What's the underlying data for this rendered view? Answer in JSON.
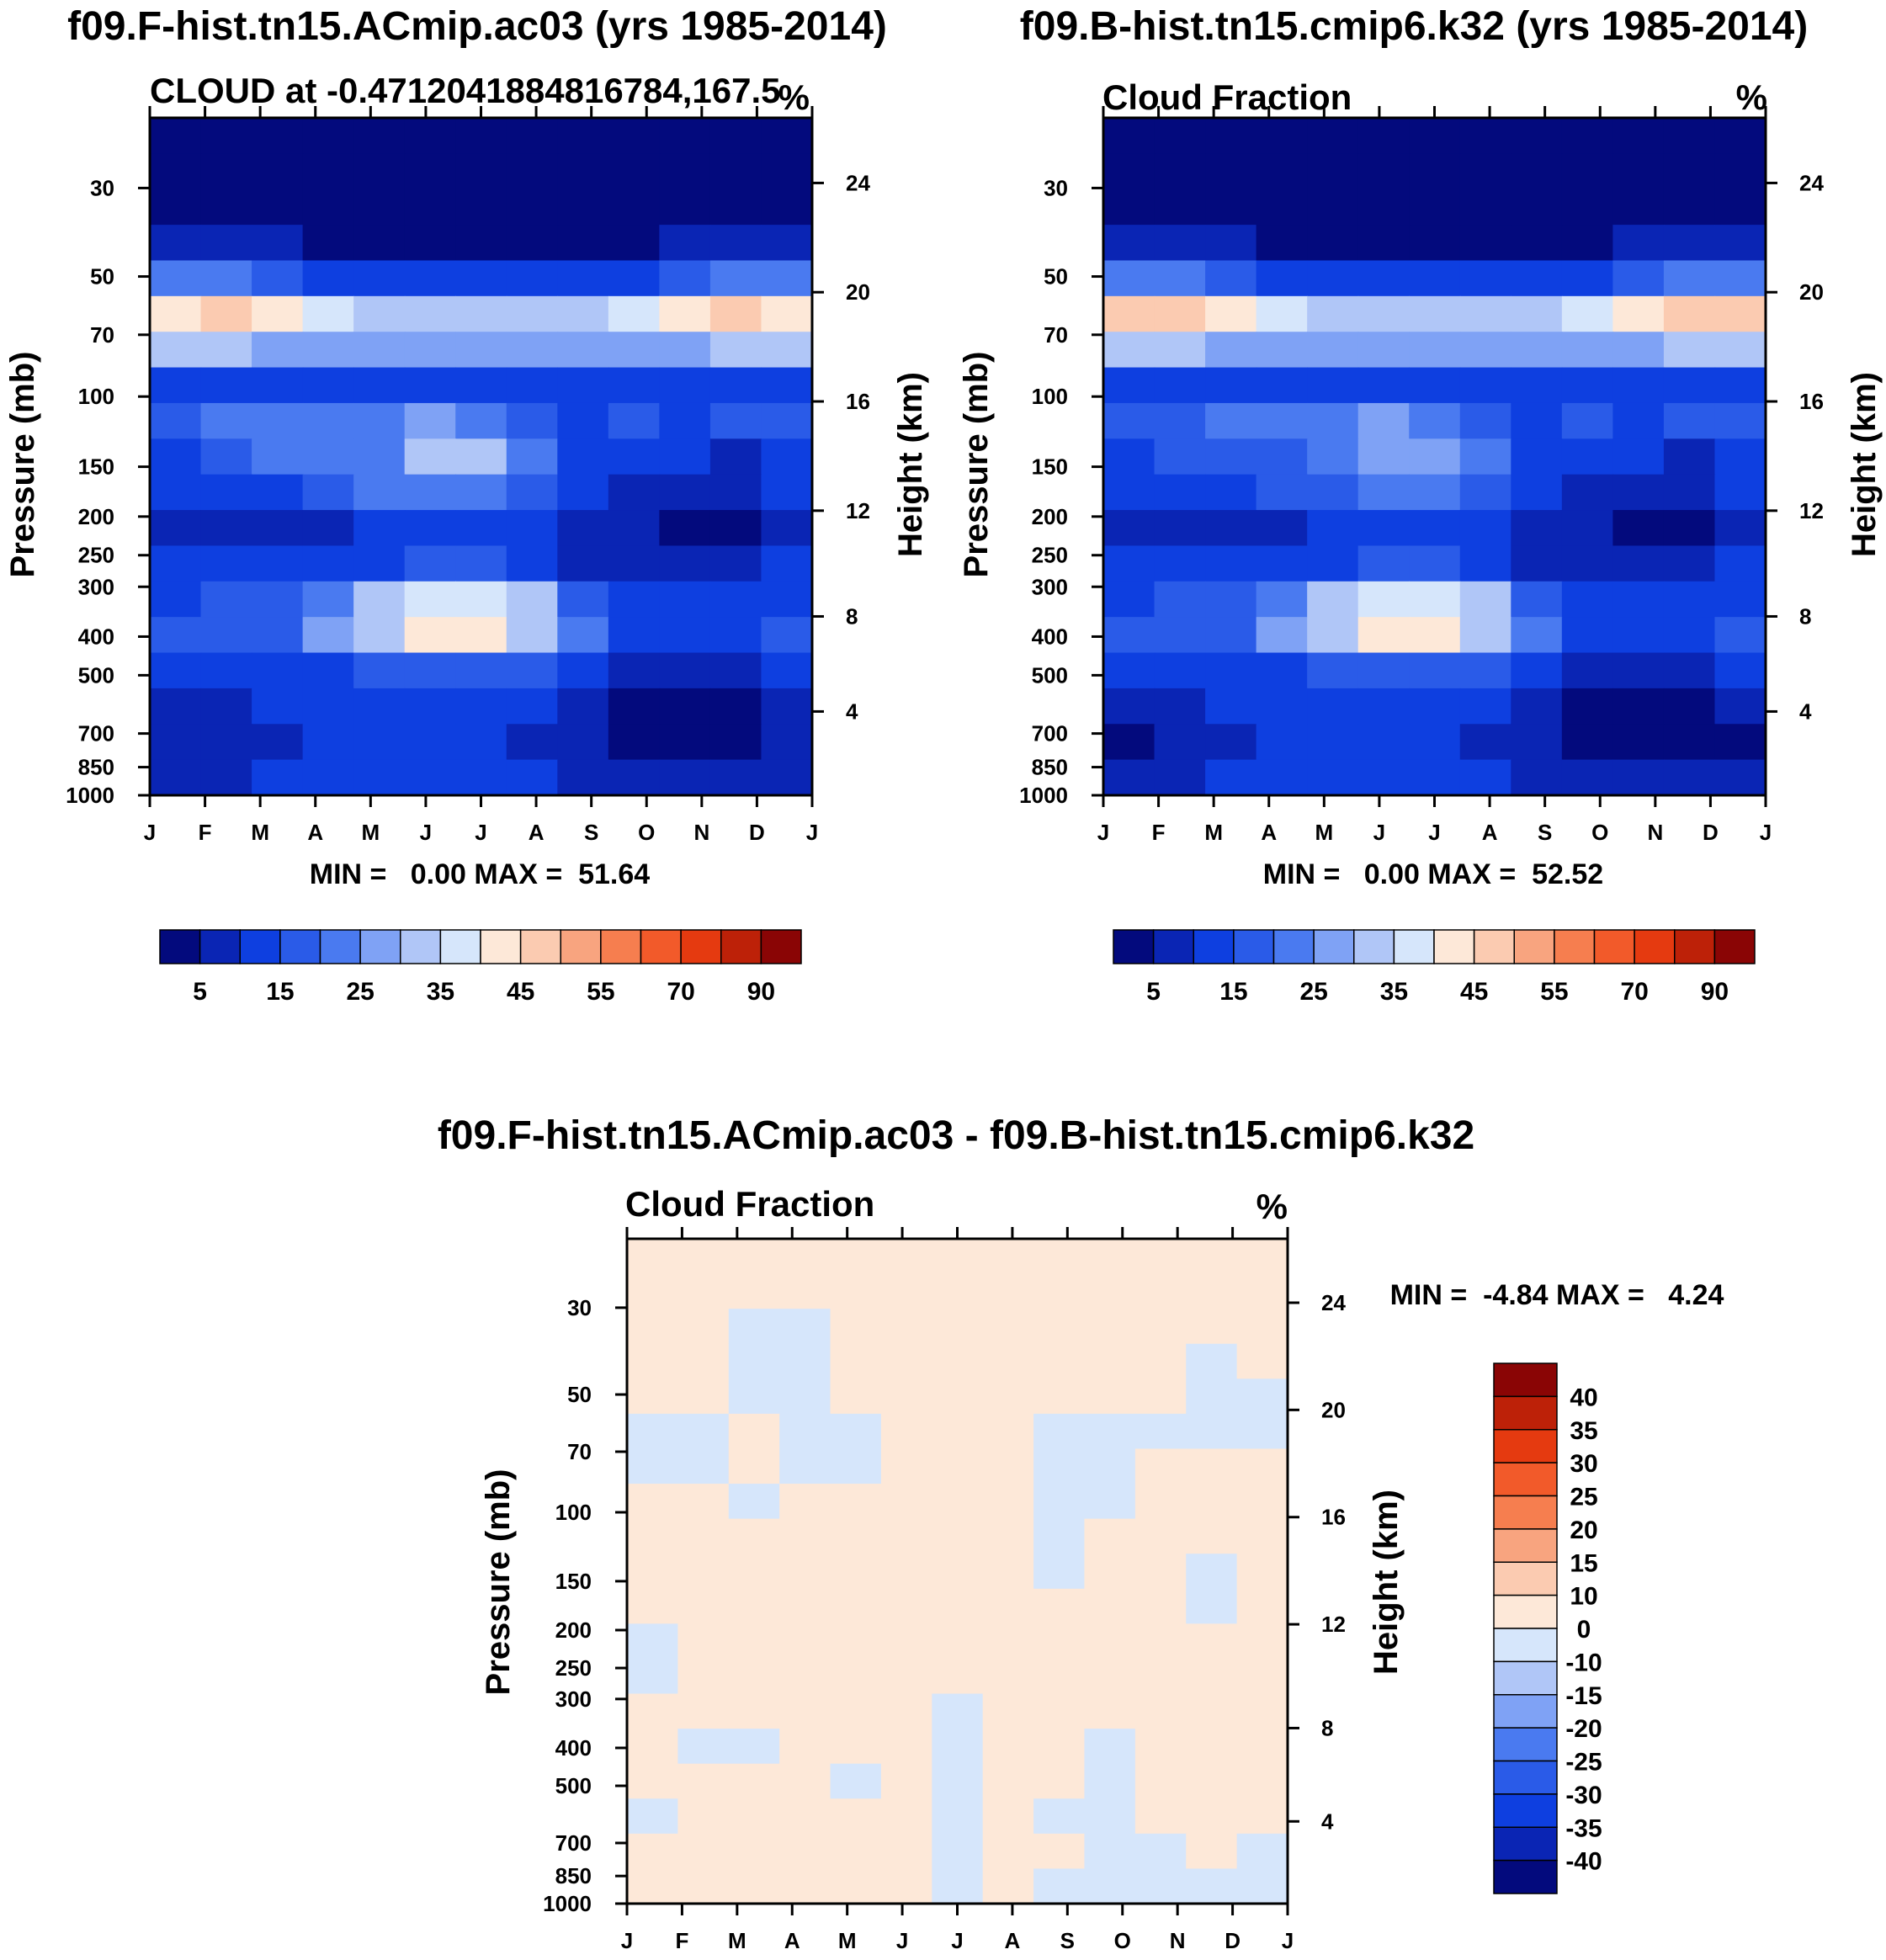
{
  "chart_data": [
    {
      "type": "heatmap",
      "title": "f09.F-hist.tn15.ACmip.ac03 (yrs 1985-2014)",
      "left_label": "CLOUD at -0.4712041884816784,167.5",
      "units": "%",
      "xlabel": "",
      "ylabel": "Pressure (mb)",
      "ylabel_right": "Height (km)",
      "x_ticks": [
        "J",
        "F",
        "M",
        "A",
        "M",
        "J",
        "J",
        "A",
        "S",
        "O",
        "N",
        "D",
        "J"
      ],
      "pressure_ticks": [
        30,
        50,
        70,
        100,
        150,
        200,
        250,
        300,
        400,
        500,
        700,
        850,
        1000
      ],
      "height_ticks": [
        24,
        20,
        16,
        12,
        8,
        4
      ],
      "pressure_range": [
        20,
        1000
      ],
      "stats": "MIN =   0.00 MAX =  51.64",
      "min": 0.0,
      "max": 51.64,
      "colorbar_levels": [
        0,
        5,
        10,
        15,
        20,
        25,
        30,
        35,
        40,
        45,
        50,
        55,
        60,
        70,
        80,
        90,
        100
      ],
      "colorbar_labels": [
        "5",
        "15",
        "25",
        "35",
        "45",
        "55",
        "70",
        "90"
      ],
      "colorbar_colors": [
        "#030a7d",
        "#0a25b4",
        "#0e3fe0",
        "#2a5be8",
        "#4a7af0",
        "#7fa2f5",
        "#b0c6f7",
        "#d6e6fb",
        "#fde8d8",
        "#fbcbb1",
        "#f8a47f",
        "#f67e4f",
        "#f25a2a",
        "#e53a10",
        "#bd2108",
        "#8a0505"
      ],
      "values": [
        [
          0,
          0,
          0,
          0,
          0,
          0,
          0,
          0,
          0,
          0,
          0,
          0,
          0
        ],
        [
          1,
          1,
          1,
          0,
          0,
          0,
          0,
          0,
          0,
          0,
          1,
          1,
          1
        ],
        [
          3,
          3,
          2,
          1,
          1,
          1,
          1,
          1,
          1,
          1,
          2,
          3,
          3
        ],
        [
          9,
          9,
          6,
          4,
          3,
          3,
          3,
          3,
          3,
          4,
          7,
          9,
          9
        ],
        [
          22,
          20,
          16,
          12,
          11,
          11,
          11,
          11,
          11,
          13,
          18,
          21,
          22
        ],
        [
          44,
          46,
          40,
          36,
          34,
          33,
          33,
          33,
          34,
          36,
          41,
          46,
          44
        ],
        [
          32,
          30,
          28,
          26,
          25,
          25,
          25,
          25,
          25,
          26,
          29,
          31,
          32
        ],
        [
          14,
          14,
          13,
          13,
          12,
          12,
          12,
          12,
          12,
          13,
          14,
          14,
          14
        ],
        [
          18,
          20,
          21,
          22,
          21,
          28,
          22,
          16,
          14,
          16,
          14,
          17,
          18
        ],
        [
          11,
          16,
          20,
          20,
          24,
          32,
          30,
          20,
          12,
          11,
          10,
          9,
          11
        ],
        [
          10,
          11,
          14,
          17,
          20,
          24,
          24,
          17,
          10,
          8,
          8,
          9,
          10
        ],
        [
          6,
          7,
          8,
          9,
          11,
          13,
          13,
          11,
          6,
          5,
          4,
          3,
          6
        ],
        [
          11,
          10,
          11,
          13,
          14,
          16,
          15,
          12,
          9,
          6,
          5,
          5,
          11
        ],
        [
          14,
          15,
          17,
          24,
          31,
          38,
          38,
          30,
          18,
          14,
          13,
          14,
          14
        ],
        [
          15,
          15,
          17,
          25,
          33,
          42,
          42,
          32,
          20,
          14,
          13,
          14,
          15
        ],
        [
          12,
          12,
          13,
          14,
          15,
          18,
          18,
          15,
          10,
          8,
          8,
          8,
          12
        ],
        [
          9,
          9,
          10,
          11,
          12,
          13,
          12,
          10,
          6,
          4,
          3,
          4,
          9
        ],
        [
          5,
          6,
          8,
          10,
          10,
          11,
          10,
          9,
          6,
          3,
          3,
          3,
          5
        ],
        [
          8,
          9,
          11,
          12,
          12,
          13,
          12,
          11,
          9,
          7,
          7,
          8,
          8
        ]
      ]
    },
    {
      "type": "heatmap",
      "title": "f09.B-hist.tn15.cmip6.k32 (yrs 1985-2014)",
      "left_label": "Cloud Fraction",
      "units": "%",
      "xlabel": "",
      "ylabel": "Pressure (mb)",
      "ylabel_right": "Height (km)",
      "x_ticks": [
        "J",
        "F",
        "M",
        "A",
        "M",
        "J",
        "J",
        "A",
        "S",
        "O",
        "N",
        "D",
        "J"
      ],
      "pressure_ticks": [
        30,
        50,
        70,
        100,
        150,
        200,
        250,
        300,
        400,
        500,
        700,
        850,
        1000
      ],
      "height_ticks": [
        24,
        20,
        16,
        12,
        8,
        4
      ],
      "pressure_range": [
        20,
        1000
      ],
      "stats": "MIN =   0.00 MAX =  52.52",
      "min": 0.0,
      "max": 52.52,
      "colorbar_levels": [
        0,
        5,
        10,
        15,
        20,
        25,
        30,
        35,
        40,
        45,
        50,
        55,
        60,
        70,
        80,
        90,
        100
      ],
      "colorbar_labels": [
        "5",
        "15",
        "25",
        "35",
        "45",
        "55",
        "70",
        "90"
      ],
      "colorbar_colors": [
        "#030a7d",
        "#0a25b4",
        "#0e3fe0",
        "#2a5be8",
        "#4a7af0",
        "#7fa2f5",
        "#b0c6f7",
        "#d6e6fb",
        "#fde8d8",
        "#fbcbb1",
        "#f8a47f",
        "#f67e4f",
        "#f25a2a",
        "#e53a10",
        "#bd2108",
        "#8a0505"
      ],
      "values": [
        [
          0,
          0,
          0,
          0,
          0,
          0,
          0,
          0,
          0,
          0,
          0,
          0,
          0
        ],
        [
          1,
          1,
          1,
          0,
          0,
          0,
          0,
          0,
          0,
          0,
          1,
          1,
          1
        ],
        [
          3,
          3,
          2,
          1,
          1,
          1,
          1,
          1,
          1,
          1,
          2,
          3,
          3
        ],
        [
          9,
          9,
          6,
          4,
          3,
          3,
          3,
          3,
          3,
          4,
          7,
          9,
          9
        ],
        [
          22,
          20,
          16,
          12,
          11,
          11,
          11,
          11,
          11,
          13,
          18,
          21,
          22
        ],
        [
          45,
          47,
          41,
          35,
          33,
          32,
          32,
          32,
          33,
          37,
          42,
          47,
          45
        ],
        [
          32,
          30,
          28,
          26,
          25,
          25,
          25,
          25,
          25,
          26,
          29,
          31,
          32
        ],
        [
          14,
          14,
          13,
          13,
          12,
          12,
          12,
          12,
          12,
          13,
          14,
          14,
          14
        ],
        [
          18,
          19,
          20,
          21,
          20,
          25,
          22,
          16,
          14,
          16,
          14,
          17,
          18
        ],
        [
          11,
          15,
          19,
          19,
          22,
          26,
          28,
          20,
          12,
          11,
          10,
          9,
          11
        ],
        [
          10,
          11,
          14,
          17,
          19,
          22,
          24,
          17,
          10,
          8,
          8,
          9,
          10
        ],
        [
          7,
          7,
          8,
          9,
          11,
          13,
          13,
          11,
          6,
          5,
          4,
          4,
          7
        ],
        [
          11,
          10,
          11,
          13,
          14,
          16,
          15,
          12,
          9,
          6,
          6,
          6,
          11
        ],
        [
          14,
          15,
          17,
          24,
          31,
          38,
          38,
          30,
          18,
          14,
          13,
          14,
          14
        ],
        [
          15,
          15,
          17,
          25,
          33,
          42,
          42,
          32,
          20,
          14,
          13,
          14,
          15
        ],
        [
          12,
          12,
          13,
          14,
          15,
          18,
          18,
          15,
          10,
          8,
          8,
          8,
          12
        ],
        [
          8,
          9,
          10,
          11,
          12,
          13,
          12,
          10,
          6,
          4,
          3,
          4,
          8
        ],
        [
          4,
          6,
          8,
          10,
          10,
          11,
          10,
          9,
          6,
          3,
          3,
          3,
          4
        ],
        [
          8,
          9,
          11,
          12,
          12,
          13,
          12,
          11,
          9,
          7,
          7,
          8,
          8
        ]
      ]
    },
    {
      "type": "heatmap",
      "title": "f09.F-hist.tn15.ACmip.ac03 - f09.B-hist.tn15.cmip6.k32",
      "left_label": "Cloud Fraction",
      "units": "%",
      "xlabel": "",
      "ylabel": "Pressure (mb)",
      "ylabel_right": "Height (km)",
      "x_ticks": [
        "J",
        "F",
        "M",
        "A",
        "M",
        "J",
        "J",
        "A",
        "S",
        "O",
        "N",
        "D",
        "J"
      ],
      "pressure_ticks": [
        30,
        50,
        70,
        100,
        150,
        200,
        250,
        300,
        400,
        500,
        700,
        850,
        1000
      ],
      "height_ticks": [
        24,
        20,
        16,
        12,
        8,
        4
      ],
      "pressure_range": [
        20,
        1000
      ],
      "stats": "MIN =  -4.84 MAX =   4.24",
      "min": -4.84,
      "max": 4.24,
      "colorbar_levels": [
        -45,
        -40,
        -35,
        -30,
        -25,
        -20,
        -15,
        -10,
        0,
        10,
        15,
        20,
        25,
        30,
        35,
        40,
        45
      ],
      "colorbar_labels": [
        "40",
        "35",
        "30",
        "25",
        "20",
        "15",
        "10",
        "0",
        "-10",
        "-15",
        "-20",
        "-25",
        "-30",
        "-35",
        "-40"
      ],
      "colorbar_colors": [
        "#030a7d",
        "#0a25b4",
        "#0e3fe0",
        "#2a5be8",
        "#4a7af0",
        "#7fa2f5",
        "#b0c6f7",
        "#d6e6fb",
        "#fde8d8",
        "#fbcbb1",
        "#f8a47f",
        "#f67e4f",
        "#f25a2a",
        "#e53a10",
        "#bd2108",
        "#8a0505"
      ],
      "values": [
        [
          1,
          1,
          1,
          1,
          1,
          1,
          1,
          1,
          1,
          1,
          1,
          1,
          1
        ],
        [
          1,
          1,
          1,
          1,
          1,
          1,
          1,
          1,
          1,
          1,
          1,
          1,
          1
        ],
        [
          1,
          1,
          -1,
          -1,
          1,
          1,
          1,
          1,
          1,
          1,
          1,
          1,
          1
        ],
        [
          1,
          1,
          -1,
          -1,
          1,
          1,
          1,
          1,
          1,
          1,
          1,
          -1,
          1
        ],
        [
          1,
          1,
          -1,
          -2,
          1,
          1,
          1,
          1,
          1,
          1,
          1,
          -1,
          -1
        ],
        [
          -1,
          -1,
          1,
          -2,
          -1,
          1,
          1,
          1,
          -1,
          -1,
          -1,
          -1,
          -1
        ],
        [
          -1,
          -1,
          1,
          -1,
          -1,
          1,
          1,
          1,
          -1,
          -1,
          1,
          1,
          1
        ],
        [
          1,
          1,
          -1,
          1,
          1,
          1,
          1,
          1,
          -1,
          -1,
          1,
          1,
          1
        ],
        [
          1,
          1,
          1,
          1,
          1,
          1,
          1,
          1,
          -1,
          1,
          1,
          1,
          1
        ],
        [
          1,
          1,
          1,
          1,
          1,
          1,
          1,
          1,
          -1,
          1,
          1,
          -1,
          1
        ],
        [
          1,
          1,
          1,
          1,
          1,
          1,
          1,
          1,
          1,
          1,
          1,
          -1,
          1
        ],
        [
          -1,
          1,
          1,
          1,
          1,
          1,
          1,
          1,
          1,
          1,
          1,
          1,
          1
        ],
        [
          -1,
          1,
          1,
          1,
          1,
          1,
          1,
          1,
          1,
          1,
          1,
          1,
          1
        ],
        [
          1,
          1,
          1,
          1,
          1,
          1,
          -1,
          1,
          1,
          1,
          1,
          1,
          1
        ],
        [
          1,
          -1,
          -1,
          1,
          1,
          1,
          -1,
          1,
          1,
          -1,
          1,
          1,
          1
        ],
        [
          1,
          1,
          1,
          1,
          -1,
          1,
          -1,
          1,
          1,
          -1,
          1,
          1,
          1
        ],
        [
          -1,
          1,
          1,
          1,
          1,
          1,
          -1,
          1,
          -1,
          -1,
          1,
          1,
          1
        ],
        [
          1,
          1,
          1,
          1,
          1,
          1,
          -1,
          1,
          1,
          -1,
          -1,
          1,
          -1
        ],
        [
          1,
          1,
          1,
          1,
          1,
          1,
          -1,
          1,
          -1,
          -1,
          -1,
          -1,
          -1
        ]
      ]
    }
  ]
}
